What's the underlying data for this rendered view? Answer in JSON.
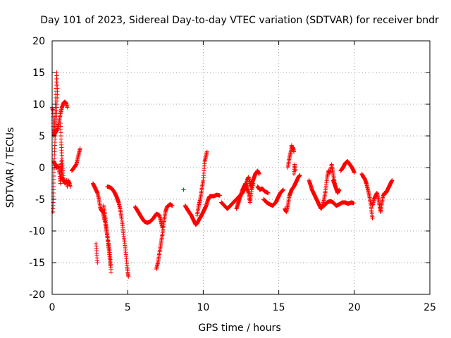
{
  "chart_data": {
    "type": "scatter",
    "title": "Day 101 of 2023, Sidereal Day-to-day VTEC variation (SDTVAR) for receiver bndr",
    "xlabel": "GPS time / hours",
    "ylabel": "SDTVAR / TECUs",
    "xlim": [
      0,
      25
    ],
    "ylim": [
      -20,
      20
    ],
    "xticks": [
      0,
      5,
      10,
      15,
      20,
      25
    ],
    "yticks": [
      -20,
      -15,
      -10,
      -5,
      0,
      5,
      10,
      15,
      20
    ],
    "grid": true,
    "marker": "+",
    "colors": {
      "series": "#ff0000",
      "axes": "#000000",
      "grid": "#a0a0a0"
    },
    "series": [
      {
        "name": "SDTVAR",
        "path_segments": [
          [
            [
              0.0,
              9.5
            ],
            [
              0.05,
              9.0
            ],
            [
              0.1,
              5.5
            ],
            [
              0.15,
              6.0
            ],
            [
              0.25,
              12.0
            ],
            [
              0.3,
              15.0
            ],
            [
              0.35,
              12.0
            ],
            [
              0.3,
              9.0
            ],
            [
              0.2,
              5.0
            ],
            [
              0.15,
              2.0
            ],
            [
              0.1,
              -3.0
            ],
            [
              0.05,
              -7.0
            ]
          ],
          [
            [
              0.1,
              5.0
            ],
            [
              0.2,
              5.5
            ],
            [
              0.35,
              6.0
            ],
            [
              0.45,
              7.0
            ],
            [
              0.55,
              8.5
            ],
            [
              0.65,
              9.5
            ],
            [
              0.75,
              10.2
            ],
            [
              0.85,
              10.4
            ],
            [
              0.95,
              10.0
            ],
            [
              1.0,
              9.5
            ]
          ],
          [
            [
              0.1,
              1.0
            ],
            [
              0.2,
              0.5
            ],
            [
              0.3,
              0.0
            ],
            [
              0.4,
              0.3
            ],
            [
              0.5,
              -1.0
            ],
            [
              0.55,
              -2.5
            ],
            [
              0.6,
              1.0
            ],
            [
              0.65,
              -1.5
            ],
            [
              0.75,
              -2.0
            ],
            [
              0.85,
              -2.5
            ],
            [
              0.95,
              -2.0
            ],
            [
              1.0,
              -3.0
            ],
            [
              1.05,
              -2.0
            ],
            [
              1.15,
              -2.5
            ],
            [
              1.2,
              -3.0
            ]
          ],
          [
            [
              0.55,
              7.0
            ],
            [
              0.6,
              4.0
            ],
            [
              0.65,
              1.5
            ],
            [
              0.7,
              -0.5
            ],
            [
              0.75,
              -2.0
            ]
          ],
          [
            [
              1.3,
              -0.5
            ],
            [
              1.45,
              0.0
            ],
            [
              1.6,
              0.5
            ],
            [
              1.7,
              1.5
            ],
            [
              1.8,
              2.5
            ],
            [
              1.85,
              3.0
            ]
          ],
          [
            [
              2.7,
              -2.5
            ],
            [
              2.8,
              -3.0
            ],
            [
              2.9,
              -3.5
            ],
            [
              3.0,
              -4.0
            ],
            [
              3.1,
              -5.0
            ],
            [
              3.2,
              -6.5
            ],
            [
              3.35,
              -7.0
            ],
            [
              3.5,
              -8.5
            ],
            [
              3.6,
              -10.0
            ],
            [
              3.7,
              -11.5
            ],
            [
              3.8,
              -13.0
            ],
            [
              3.85,
              -14.5
            ],
            [
              3.9,
              -16.5
            ]
          ],
          [
            [
              2.9,
              -12.0
            ],
            [
              2.95,
              -13.5
            ],
            [
              3.0,
              -15.0
            ]
          ],
          [
            [
              3.4,
              -6.0
            ],
            [
              3.5,
              -7.5
            ],
            [
              3.6,
              -9.5
            ],
            [
              3.7,
              -12.0
            ],
            [
              3.8,
              -14.0
            ],
            [
              3.85,
              -15.5
            ]
          ],
          [
            [
              3.65,
              -3.0
            ],
            [
              3.8,
              -3.1
            ],
            [
              3.95,
              -3.3
            ],
            [
              4.1,
              -3.8
            ],
            [
              4.25,
              -4.5
            ],
            [
              4.4,
              -5.5
            ],
            [
              4.5,
              -6.5
            ],
            [
              4.6,
              -8.0
            ],
            [
              4.7,
              -10.0
            ],
            [
              4.8,
              -12.0
            ],
            [
              4.9,
              -14.0
            ],
            [
              4.95,
              -15.5
            ],
            [
              5.0,
              -16.5
            ],
            [
              5.05,
              -17.2
            ]
          ],
          [
            [
              5.5,
              -6.2
            ],
            [
              5.7,
              -7.0
            ],
            [
              5.9,
              -7.8
            ],
            [
              6.1,
              -8.5
            ],
            [
              6.3,
              -8.7
            ],
            [
              6.5,
              -8.5
            ],
            [
              6.7,
              -8.0
            ],
            [
              6.9,
              -7.3
            ],
            [
              7.1,
              -7.5
            ],
            [
              7.2,
              -8.5
            ],
            [
              7.3,
              -9.5
            ]
          ],
          [
            [
              6.9,
              -16.0
            ],
            [
              7.0,
              -15.0
            ],
            [
              7.1,
              -13.5
            ],
            [
              7.2,
              -12.0
            ],
            [
              7.3,
              -10.5
            ],
            [
              7.35,
              -9.5
            ],
            [
              7.4,
              -8.5
            ],
            [
              7.5,
              -7.0
            ],
            [
              7.6,
              -6.2
            ],
            [
              7.8,
              -5.8
            ],
            [
              7.95,
              -6.0
            ]
          ],
          [
            [
              8.7,
              -3.5
            ]
          ],
          [
            [
              8.8,
              -6.0
            ],
            [
              9.0,
              -6.8
            ],
            [
              9.2,
              -7.5
            ],
            [
              9.3,
              -8.0
            ],
            [
              9.4,
              -8.5
            ],
            [
              9.5,
              -9.0
            ],
            [
              9.6,
              -8.8
            ],
            [
              9.7,
              -8.3
            ],
            [
              9.8,
              -7.9
            ],
            [
              9.9,
              -7.5
            ],
            [
              10.0,
              -7.0
            ],
            [
              10.1,
              -6.5
            ],
            [
              10.2,
              -6.0
            ],
            [
              10.3,
              -5.2
            ],
            [
              10.4,
              -4.6
            ],
            [
              10.5,
              -4.5
            ],
            [
              10.7,
              -4.5
            ],
            [
              10.9,
              -4.3
            ],
            [
              11.1,
              -4.4
            ]
          ],
          [
            [
              9.6,
              -7.5
            ],
            [
              9.7,
              -6.0
            ],
            [
              9.8,
              -5.0
            ],
            [
              9.9,
              -3.5
            ],
            [
              10.0,
              -2.0
            ],
            [
              10.05,
              -0.5
            ],
            [
              10.1,
              1.0
            ],
            [
              10.2,
              2.0
            ],
            [
              10.25,
              2.5
            ]
          ],
          [
            [
              11.2,
              -5.5
            ],
            [
              11.4,
              -6.0
            ],
            [
              11.6,
              -6.5
            ],
            [
              11.8,
              -6.0
            ],
            [
              12.0,
              -5.5
            ],
            [
              12.2,
              -5.0
            ],
            [
              12.4,
              -4.5
            ],
            [
              12.6,
              -4.0
            ],
            [
              12.8,
              -3.0
            ],
            [
              12.9,
              -2.0
            ],
            [
              13.0,
              -1.5
            ],
            [
              13.15,
              -3.0
            ],
            [
              13.3,
              -2.0
            ],
            [
              13.45,
              -1.0
            ],
            [
              13.6,
              -0.5
            ],
            [
              13.7,
              -1.0
            ]
          ],
          [
            [
              12.2,
              -6.5
            ],
            [
              12.4,
              -5.0
            ],
            [
              12.6,
              -3.5
            ],
            [
              12.8,
              -2.5
            ],
            [
              13.0,
              -4.0
            ],
            [
              13.1,
              -5.5
            ],
            [
              13.2,
              -3.5
            ],
            [
              13.3,
              -2.5
            ]
          ],
          [
            [
              13.6,
              -3.0
            ],
            [
              13.75,
              -3.5
            ],
            [
              13.9,
              -3.3
            ],
            [
              14.1,
              -3.8
            ],
            [
              14.3,
              -4.0
            ]
          ],
          [
            [
              14.0,
              -5.0
            ],
            [
              14.2,
              -5.5
            ],
            [
              14.4,
              -5.8
            ],
            [
              14.6,
              -6.0
            ],
            [
              14.8,
              -5.5
            ],
            [
              15.0,
              -4.5
            ],
            [
              15.1,
              -4.0
            ],
            [
              15.3,
              -3.5
            ]
          ],
          [
            [
              15.4,
              -6.5
            ],
            [
              15.5,
              -7.0
            ],
            [
              15.6,
              -6.0
            ],
            [
              15.7,
              -4.5
            ],
            [
              15.85,
              -3.5
            ],
            [
              16.0,
              -3.0
            ],
            [
              16.1,
              -2.5
            ],
            [
              16.2,
              -2.0
            ],
            [
              16.3,
              -1.5
            ],
            [
              16.4,
              -1.2
            ]
          ],
          [
            [
              15.6,
              0.0
            ],
            [
              15.7,
              1.5
            ],
            [
              15.8,
              2.5
            ],
            [
              15.85,
              3.5
            ],
            [
              15.9,
              2.8
            ],
            [
              15.95,
              3.2
            ],
            [
              16.0,
              2.5
            ]
          ],
          [
            [
              16.0,
              -1.0
            ],
            [
              16.05,
              0.5
            ],
            [
              16.1,
              -0.5
            ]
          ],
          [
            [
              17.0,
              -2.0
            ],
            [
              17.2,
              -3.5
            ],
            [
              17.4,
              -4.5
            ],
            [
              17.6,
              -5.5
            ],
            [
              17.8,
              -6.5
            ],
            [
              17.9,
              -6.0
            ],
            [
              18.0,
              -5.0
            ],
            [
              18.1,
              -3.5
            ],
            [
              18.2,
              -1.5
            ],
            [
              18.3,
              -0.5
            ],
            [
              18.4,
              -0.8
            ],
            [
              18.5,
              0.5
            ],
            [
              18.6,
              -1.0
            ],
            [
              18.7,
              -2.5
            ]
          ],
          [
            [
              18.0,
              -6.0
            ],
            [
              18.2,
              -5.5
            ],
            [
              18.4,
              -5.3
            ],
            [
              18.6,
              -5.5
            ],
            [
              18.8,
              -6.0
            ],
            [
              19.0,
              -5.8
            ],
            [
              19.2,
              -5.5
            ],
            [
              19.4,
              -5.5
            ],
            [
              19.6,
              -5.7
            ],
            [
              19.8,
              -5.5
            ],
            [
              19.95,
              -5.6
            ]
          ],
          [
            [
              18.6,
              -2.0
            ],
            [
              18.75,
              -3.0
            ],
            [
              18.9,
              -4.0
            ],
            [
              19.0,
              -3.5
            ]
          ],
          [
            [
              19.1,
              -0.5
            ],
            [
              19.25,
              0.0
            ],
            [
              19.4,
              0.7
            ],
            [
              19.55,
              1.0
            ],
            [
              19.7,
              0.5
            ],
            [
              19.85,
              0.0
            ],
            [
              19.95,
              -0.5
            ],
            [
              20.0,
              -0.8
            ]
          ],
          [
            [
              20.5,
              -1.0
            ],
            [
              20.6,
              -1.5
            ],
            [
              20.7,
              -1.8
            ],
            [
              20.8,
              -2.5
            ],
            [
              20.9,
              -3.5
            ],
            [
              21.0,
              -4.5
            ],
            [
              21.1,
              -6.0
            ],
            [
              21.15,
              -7.0
            ],
            [
              21.2,
              -8.0
            ]
          ],
          [
            [
              21.2,
              -6.0
            ],
            [
              21.3,
              -5.0
            ],
            [
              21.4,
              -4.5
            ],
            [
              21.5,
              -4.0
            ],
            [
              21.6,
              -5.0
            ],
            [
              21.7,
              -6.5
            ],
            [
              21.75,
              -7.0
            ],
            [
              21.8,
              -6.0
            ],
            [
              21.9,
              -4.5
            ],
            [
              22.0,
              -4.0
            ],
            [
              22.1,
              -4.0
            ],
            [
              22.2,
              -3.5
            ],
            [
              22.3,
              -3.0
            ],
            [
              22.4,
              -2.5
            ],
            [
              22.5,
              -2.0
            ]
          ]
        ]
      }
    ]
  }
}
